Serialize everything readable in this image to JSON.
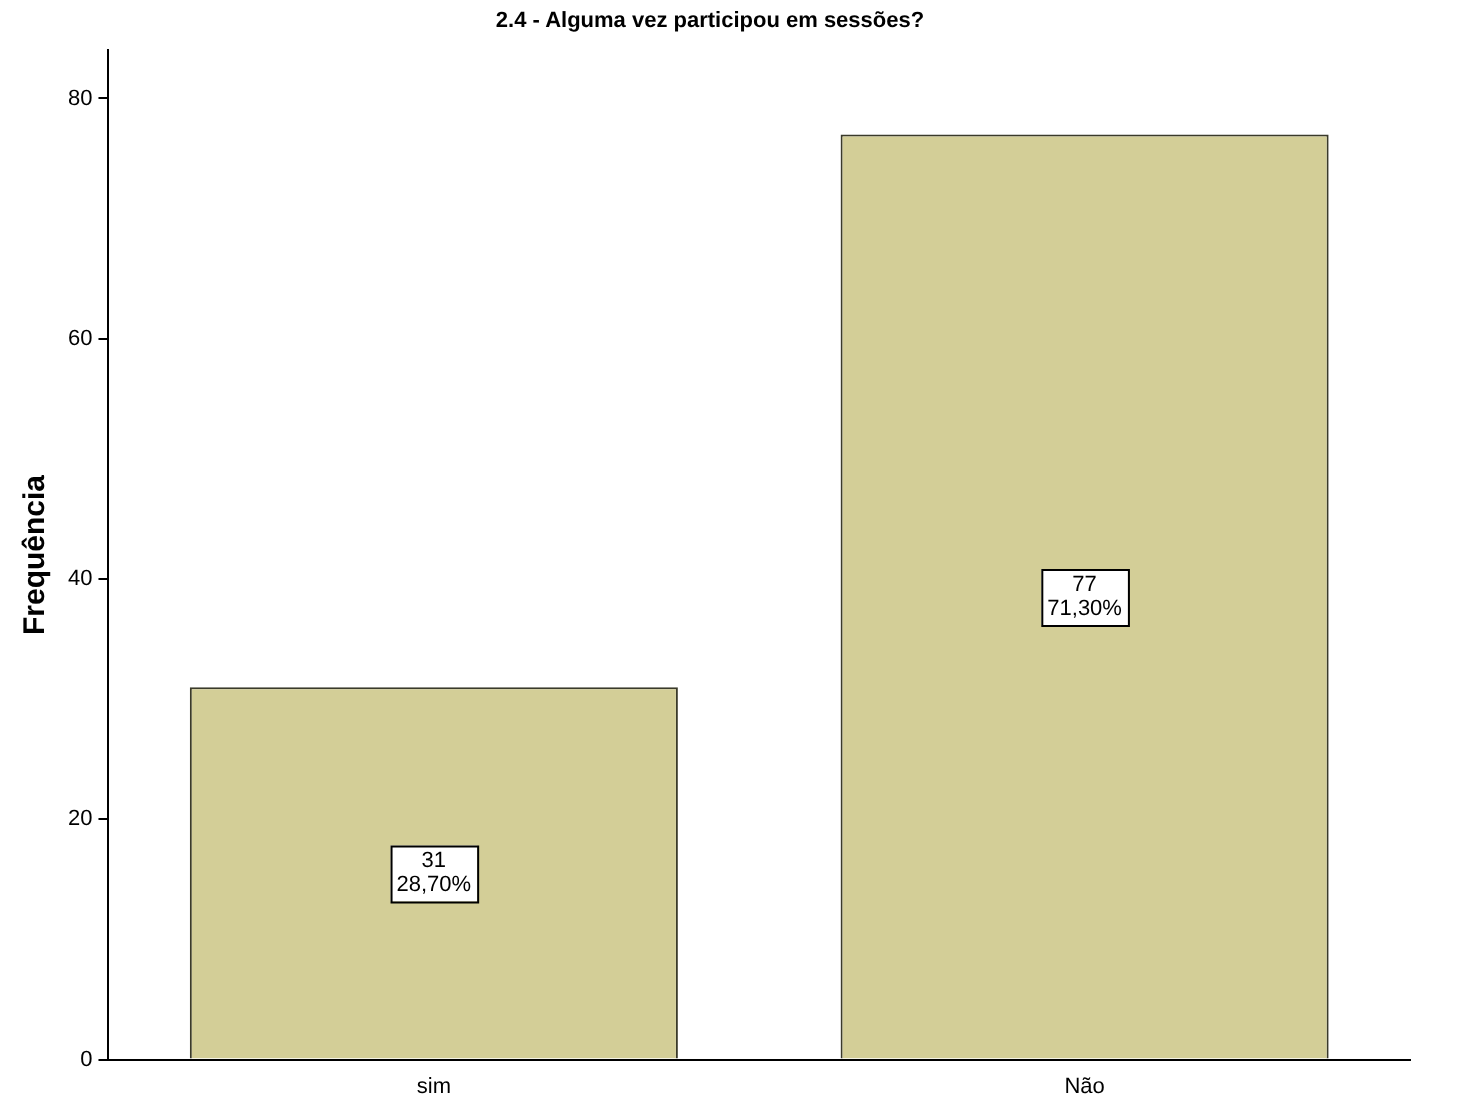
{
  "chart_data": {
    "type": "bar",
    "title": "2.4 - Alguma vez participou em sessões?",
    "ylabel": "Frequência",
    "categories": [
      "sim",
      "Não"
    ],
    "values": [
      31,
      77
    ],
    "color": "#d3ce97",
    "value_labels": [
      "31\n28,70%",
      "77\n71,30%"
    ],
    "ylim": [
      0,
      84
    ],
    "yticks": [
      0,
      20,
      40,
      60,
      80
    ],
    "grid": false,
    "legend": false
  }
}
